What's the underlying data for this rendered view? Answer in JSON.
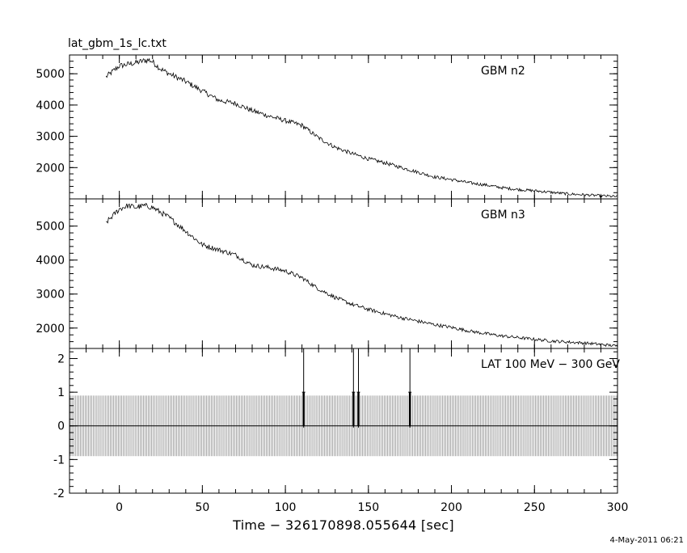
{
  "figure": {
    "title": "lat_gbm_1s_lc.txt",
    "xlabel": "Time − 326170898.055644 [sec]",
    "timestamp": "4-May-2011 06:21"
  },
  "chart_data": [
    {
      "type": "line",
      "panel": "top",
      "label": "GBM n2",
      "xlim": [
        -30,
        300
      ],
      "ylim": [
        1000,
        5600
      ],
      "yticks": [
        2000,
        3000,
        4000,
        5000
      ],
      "xticks": [
        0,
        50,
        100,
        150,
        200,
        250,
        300
      ],
      "x_range_data": [
        -8,
        300
      ],
      "noise": 70,
      "series": [
        {
          "x": [
            -8,
            0,
            5,
            10,
            15,
            18,
            20,
            25,
            30,
            40,
            50,
            60,
            70,
            80,
            90,
            100,
            110,
            120,
            130,
            140,
            150,
            160,
            170,
            180,
            190,
            200,
            210,
            220,
            230,
            240,
            250,
            260,
            270,
            280,
            290,
            300
          ],
          "values": [
            4900,
            5250,
            5300,
            5350,
            5420,
            5440,
            5380,
            5150,
            5000,
            4750,
            4450,
            4150,
            4050,
            3820,
            3650,
            3500,
            3350,
            2950,
            2650,
            2450,
            2280,
            2150,
            2000,
            1850,
            1700,
            1620,
            1520,
            1450,
            1360,
            1300,
            1260,
            1210,
            1160,
            1130,
            1100,
            1070
          ]
        }
      ]
    },
    {
      "type": "line",
      "panel": "middle",
      "label": "GBM n3",
      "xlim": [
        -30,
        300
      ],
      "ylim": [
        1400,
        5800
      ],
      "yticks": [
        2000,
        3000,
        4000,
        5000
      ],
      "xticks": [
        0,
        50,
        100,
        150,
        200,
        250,
        300
      ],
      "x_range_data": [
        -8,
        300
      ],
      "noise": 60,
      "series": [
        {
          "x": [
            -8,
            0,
            5,
            10,
            15,
            20,
            25,
            30,
            35,
            40,
            50,
            60,
            70,
            80,
            90,
            100,
            110,
            120,
            130,
            140,
            150,
            160,
            170,
            180,
            190,
            200,
            210,
            220,
            230,
            240,
            250,
            260,
            270,
            280,
            290,
            300
          ],
          "values": [
            5100,
            5500,
            5600,
            5550,
            5600,
            5550,
            5400,
            5250,
            5050,
            4850,
            4450,
            4300,
            4150,
            3850,
            3780,
            3680,
            3480,
            3150,
            2900,
            2700,
            2550,
            2420,
            2300,
            2200,
            2100,
            2020,
            1920,
            1840,
            1770,
            1720,
            1670,
            1620,
            1590,
            1560,
            1520,
            1470
          ]
        }
      ]
    },
    {
      "type": "bar",
      "panel": "bottom",
      "label": "LAT 100 MeV − 300 GeV",
      "xlim": [
        -30,
        300
      ],
      "ylim": [
        -2,
        2.3
      ],
      "yticks": [
        -2,
        -1,
        0,
        1,
        2
      ],
      "xticks": [
        0,
        50,
        100,
        150,
        200,
        250,
        300
      ],
      "xticklabels": [
        "0",
        "50",
        "100",
        "150",
        "200",
        "250",
        "300"
      ],
      "baseline": 0,
      "error_halfwidth": 0.9,
      "bin_range": [
        -30,
        300
      ],
      "bin_width": 1,
      "events": [
        {
          "x": 111,
          "value": 1,
          "error": 2.3
        },
        {
          "x": 141,
          "value": 1,
          "error": 2.3
        },
        {
          "x": 144,
          "value": 1,
          "error": 2.3
        },
        {
          "x": 175,
          "value": 1,
          "error": 2.3
        }
      ]
    }
  ]
}
